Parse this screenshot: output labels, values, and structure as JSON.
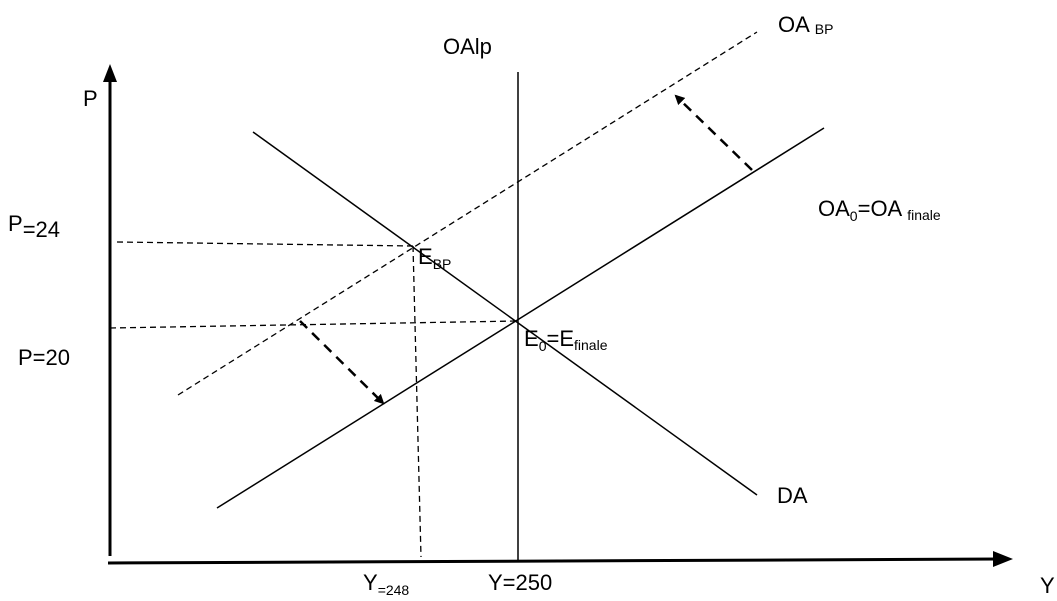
{
  "axes": {
    "x_label": "Y",
    "y_label": "P"
  },
  "curves": {
    "oalp": "OAlp",
    "oa_bp_main": "OA",
    "oa_bp_sub": "BP",
    "oa0_a": "OA",
    "oa0_a_sub": "0",
    "oa0_b": "=OA",
    "oa0_b_sub": "finale",
    "da": "DA"
  },
  "points": {
    "ebp_main": "E",
    "ebp_sub": "BP",
    "e0_a": "E",
    "e0_a_sub": "0",
    "e0_b": "=E",
    "e0_b_sub": "finale"
  },
  "ticks": {
    "p24_main": "P",
    "p24_sub": "=24",
    "p20": "P=20",
    "y248_main": "Y",
    "y248_sub": "=248",
    "y250": "Y=250"
  }
}
